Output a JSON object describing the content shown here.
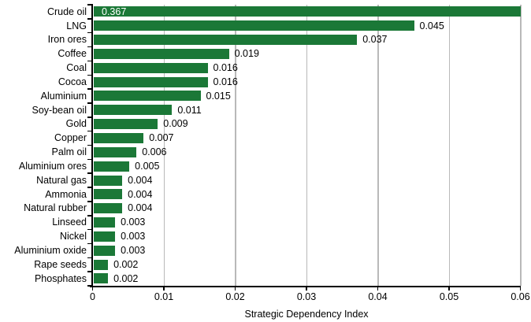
{
  "chart_data": {
    "type": "bar",
    "orientation": "horizontal",
    "title": "",
    "xlabel": "Strategic Dependency Index",
    "ylabel": "",
    "xlim": [
      0,
      0.06
    ],
    "grid": "vertical",
    "legend": "none",
    "bar_color": "#1b7837",
    "gridline_color": "#b9b9b9",
    "inside_label_color": "#ffffff",
    "categories": [
      "Crude oil",
      "LNG",
      "Iron ores",
      "Coffee",
      "Coal",
      "Cocoa",
      "Aluminium",
      "Soy-bean oil",
      "Gold",
      "Copper",
      "Palm oil",
      "Aluminium ores",
      "Natural gas",
      "Ammonia",
      "Natural rubber",
      "Linseed",
      "Nickel",
      "Aluminium oxide",
      "Rape seeds",
      "Phosphates"
    ],
    "values": [
      0.367,
      0.045,
      0.037,
      0.019,
      0.016,
      0.016,
      0.015,
      0.011,
      0.009,
      0.007,
      0.006,
      0.005,
      0.004,
      0.004,
      0.004,
      0.003,
      0.003,
      0.003,
      0.002,
      0.002
    ],
    "value_labels": [
      "0.367",
      "0.045",
      "0.037",
      "0.019",
      "0.016",
      "0.016",
      "0.015",
      "0.011",
      "0.009",
      "0.007",
      "0.006",
      "0.005",
      "0.004",
      "0.004",
      "0.004",
      "0.003",
      "0.003",
      "0.003",
      "0.002",
      "0.002"
    ],
    "x_tick_labels": [
      "0",
      "0.01",
      "0.02",
      "0.03",
      "0.04",
      "0.05",
      "0.06"
    ]
  }
}
